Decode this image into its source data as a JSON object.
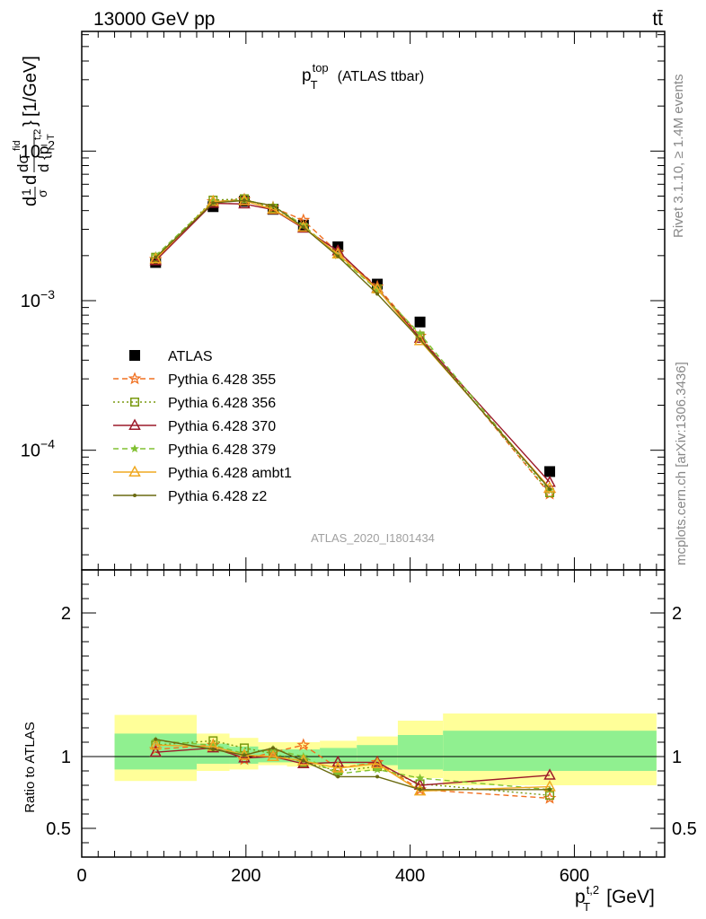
{
  "header": {
    "left": "13000 GeV pp",
    "right": "tt̄"
  },
  "title": {
    "main": "p",
    "sup": "top",
    "sub": "T",
    "rest": "(ATLAS ttbar)"
  },
  "side_labels": {
    "rivet": "Rivet 3.1.10, ≥ 1.4M events",
    "mcplots": "mcplots.cern.ch [arXiv:1306.3436]"
  },
  "analysis_id": "ATLAS_2020_I1801434",
  "ylabel_main": {
    "d": "d",
    "one": "1",
    "sigma": "σ",
    "dsig": "dσ",
    "fid": "fid",
    "dp": "d {p",
    "sup": "t,2",
    "sub": "T",
    "close": "}",
    "unit": "[1/GeV]"
  },
  "ylabel_ratio": "Ratio to ATLAS",
  "xlabel": {
    "p": "p",
    "sup": "t,2",
    "sub": "T",
    "unit": "[GeV]"
  },
  "colors": {
    "data": "#000000",
    "p355": "#f07020",
    "p356": "#7a9a10",
    "p370": "#9c1a2a",
    "p379": "#80c030",
    "ambt1": "#f0a820",
    "z2": "#6a6a10",
    "band_inner": "#90f090",
    "band_outer": "#ffff99"
  },
  "chart_data": {
    "type": "line",
    "main_panel": {
      "y_scale": "log",
      "x_range": [
        0,
        710
      ],
      "y_range": [
        1.585e-05,
        0.0631
      ],
      "y_tick_labels": [
        "10^-2",
        "10^-3",
        "10^-4"
      ],
      "series": [
        {
          "name": "ATLAS",
          "style": "data",
          "x": [
            90,
            160,
            198,
            233,
            270,
            312,
            360,
            412,
            570
          ],
          "y": [
            0.0018,
            0.00425,
            0.00462,
            0.00408,
            0.0032,
            0.00229,
            0.00129,
            0.00072,
            7.2e-05
          ]
        },
        {
          "name": "Pythia 6.428 355",
          "style": "p355",
          "x": [
            90,
            160,
            198,
            233,
            270,
            312,
            360,
            412,
            570
          ],
          "y": [
            0.00189,
            0.0046,
            0.00475,
            0.0042,
            0.00345,
            0.0021,
            0.00124,
            0.00058,
            5.1e-05
          ]
        },
        {
          "name": "Pythia 6.428 356",
          "style": "p356",
          "x": [
            90,
            160,
            198,
            233,
            270,
            312,
            360,
            412,
            570
          ],
          "y": [
            0.00195,
            0.0047,
            0.0048,
            0.00415,
            0.00308,
            0.00205,
            0.0012,
            0.00058,
            5.2e-05
          ]
        },
        {
          "name": "Pythia 6.428 370",
          "style": "p370",
          "x": [
            90,
            160,
            198,
            233,
            270,
            312,
            360,
            412,
            570
          ],
          "y": [
            0.00185,
            0.00448,
            0.00443,
            0.00406,
            0.00305,
            0.00215,
            0.00121,
            0.00056,
            6.1e-05
          ]
        },
        {
          "name": "Pythia 6.428 379",
          "style": "p379",
          "x": [
            90,
            160,
            198,
            233,
            270,
            312,
            360,
            412,
            570
          ],
          "y": [
            0.002,
            0.0046,
            0.0047,
            0.0043,
            0.0032,
            0.002,
            0.00118,
            0.0006,
            5.4e-05
          ]
        },
        {
          "name": "Pythia 6.428 ambt1",
          "style": "ambt1",
          "x": [
            90,
            160,
            198,
            233,
            270,
            312,
            360,
            412,
            570
          ],
          "y": [
            0.0019,
            0.0046,
            0.00465,
            0.00408,
            0.0031,
            0.00205,
            0.0012,
            0.00054,
            5.6e-05
          ]
        },
        {
          "name": "Pythia 6.428 z2",
          "style": "z2",
          "x": [
            90,
            160,
            198,
            233,
            270,
            312,
            360,
            412,
            570
          ],
          "y": [
            0.00195,
            0.0045,
            0.00468,
            0.00432,
            0.0031,
            0.00198,
            0.00111,
            0.00055,
            5.5e-05
          ]
        }
      ]
    },
    "ratio_panel": {
      "x_range": [
        0,
        710
      ],
      "y_range": [
        0.3,
        2.3
      ],
      "y_ticks": [
        0.5,
        1,
        2
      ],
      "y_tick_labels": [
        "0.5",
        "1",
        "2"
      ],
      "x_ticks": [
        0,
        200,
        400,
        600
      ],
      "x_tick_labels": [
        "0",
        "200",
        "400",
        "600"
      ],
      "bands": [
        {
          "x0": 40,
          "x1": 140,
          "outer": [
            0.83,
            1.29
          ],
          "inner": [
            0.91,
            1.16
          ]
        },
        {
          "x0": 140,
          "x1": 180,
          "outer": [
            0.9,
            1.16
          ],
          "inner": [
            0.95,
            1.09
          ]
        },
        {
          "x0": 180,
          "x1": 215,
          "outer": [
            0.91,
            1.13
          ],
          "inner": [
            0.95,
            1.07
          ]
        },
        {
          "x0": 215,
          "x1": 250,
          "outer": [
            0.94,
            1.1
          ],
          "inner": [
            0.96,
            1.05
          ]
        },
        {
          "x0": 250,
          "x1": 290,
          "outer": [
            0.93,
            1.1
          ],
          "inner": [
            0.96,
            1.05
          ]
        },
        {
          "x0": 290,
          "x1": 335,
          "outer": [
            0.92,
            1.11
          ],
          "inner": [
            0.95,
            1.06
          ]
        },
        {
          "x0": 335,
          "x1": 385,
          "outer": [
            0.9,
            1.14
          ],
          "inner": [
            0.94,
            1.08
          ]
        },
        {
          "x0": 385,
          "x1": 440,
          "outer": [
            0.85,
            1.25
          ],
          "inner": [
            0.91,
            1.15
          ]
        },
        {
          "x0": 440,
          "x1": 700,
          "outer": [
            0.8,
            1.3
          ],
          "inner": [
            0.9,
            1.18
          ]
        }
      ],
      "series": [
        {
          "name": "Pythia 6.428 355",
          "style": "p355",
          "y": [
            1.05,
            1.08,
            0.98,
            1.03,
            1.08,
            0.92,
            0.96,
            0.77,
            0.71
          ]
        },
        {
          "name": "Pythia 6.428 356",
          "style": "p356",
          "y": [
            1.08,
            1.11,
            1.06,
            1.02,
            0.96,
            0.9,
            0.93,
            0.81,
            0.73
          ]
        },
        {
          "name": "Pythia 6.428 370",
          "style": "p370",
          "y": [
            1.03,
            1.06,
            0.99,
            1.0,
            0.95,
            0.96,
            0.96,
            0.8,
            0.87
          ]
        },
        {
          "name": "Pythia 6.428 379",
          "style": "p379",
          "y": [
            1.11,
            1.08,
            1.02,
            1.05,
            1.0,
            0.88,
            0.91,
            0.85,
            0.77
          ]
        },
        {
          "name": "Pythia 6.428 ambt1",
          "style": "ambt1",
          "y": [
            1.08,
            1.07,
            1.01,
            1.0,
            0.97,
            0.92,
            0.95,
            0.76,
            0.79
          ]
        },
        {
          "name": "Pythia 6.428 z2",
          "style": "z2",
          "y": [
            1.12,
            1.05,
            1.01,
            1.06,
            0.97,
            0.86,
            0.86,
            0.77,
            0.77
          ]
        }
      ]
    },
    "legend": {
      "placement": "middle-left",
      "entries": [
        "ATLAS",
        "Pythia 6.428 355",
        "Pythia 6.428 356",
        "Pythia 6.428 370",
        "Pythia 6.428 379",
        "Pythia 6.428 ambt1",
        "Pythia 6.428 z2"
      ]
    }
  }
}
